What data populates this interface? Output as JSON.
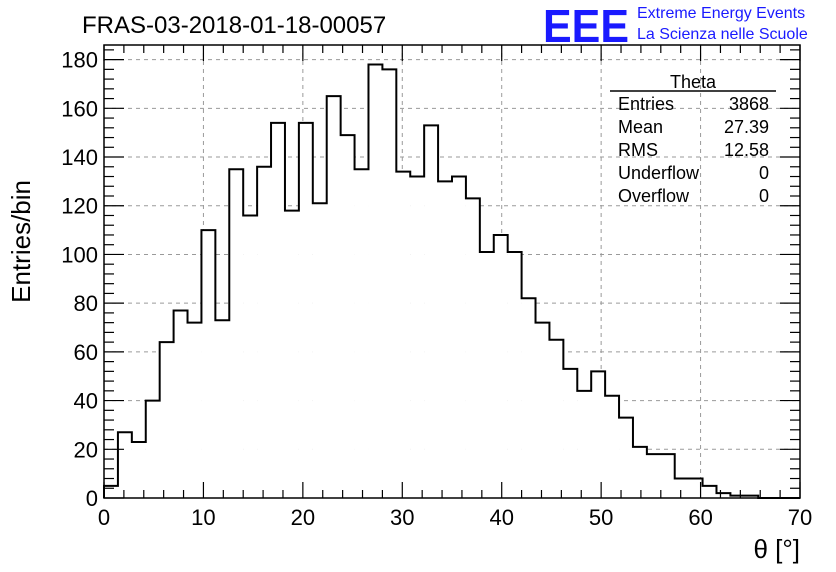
{
  "chart_data": {
    "type": "bar",
    "title": "FRAS-03-2018-01-18-00057",
    "xlabel": "θ [°]",
    "ylabel": "Entries/bin",
    "xlim": [
      0,
      70
    ],
    "ylim": [
      0,
      186
    ],
    "grid": true,
    "bin_width": 1.4,
    "x_ticks": [
      0,
      10,
      20,
      30,
      40,
      50,
      60,
      70
    ],
    "y_ticks": [
      0,
      20,
      40,
      60,
      80,
      100,
      120,
      140,
      160,
      180
    ],
    "values": [
      5,
      27,
      23,
      40,
      64,
      77,
      72,
      110,
      73,
      135,
      116,
      136,
      154,
      118,
      154,
      121,
      165,
      149,
      135,
      178,
      176,
      134,
      132,
      153,
      130,
      132,
      123,
      101,
      108,
      101,
      82,
      72,
      65,
      53,
      44,
      52,
      42,
      33,
      21,
      18,
      18,
      8,
      8,
      5,
      2,
      1,
      1,
      0,
      0,
      0
    ]
  },
  "stats_box": {
    "name": "Theta",
    "rows": [
      {
        "label": "Entries",
        "value": "3868"
      },
      {
        "label": "Mean",
        "value": "27.39"
      },
      {
        "label": "RMS",
        "value": "12.58"
      },
      {
        "label": "Underflow",
        "value": "0"
      },
      {
        "label": "Overflow",
        "value": "0"
      }
    ]
  },
  "logo": {
    "mark": "EEE",
    "line1": "Extreme Energy Events",
    "line2": "La Scienza nelle Scuole",
    "color": "#1a1aff"
  }
}
